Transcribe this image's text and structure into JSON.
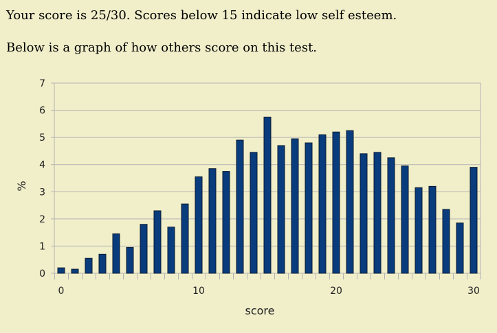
{
  "result": {
    "text": "Your score is 25/30. Scores below 15 indicate low self esteem."
  },
  "intro": {
    "text": "Below is a graph of how others score on this test."
  },
  "colors": {
    "background": "#f1efca",
    "bar_fill": "#083c7c",
    "bar_stroke": "#0a1830",
    "grid": "#b3b3b3"
  },
  "chart_data": {
    "type": "bar",
    "title": "",
    "xlabel": "score",
    "ylabel": "%",
    "xlim": [
      0,
      30
    ],
    "ylim": [
      0,
      7
    ],
    "grid": true,
    "x_ticks": [
      0,
      10,
      20,
      30
    ],
    "y_ticks": [
      0,
      1,
      2,
      3,
      4,
      5,
      6,
      7
    ],
    "x": [
      0,
      1,
      2,
      3,
      4,
      5,
      6,
      7,
      8,
      9,
      10,
      11,
      12,
      13,
      14,
      15,
      16,
      17,
      18,
      19,
      20,
      21,
      22,
      23,
      24,
      25,
      26,
      27,
      28,
      29,
      30
    ],
    "values": [
      0.2,
      0.15,
      0.55,
      0.7,
      1.45,
      0.95,
      1.8,
      2.3,
      1.7,
      2.55,
      3.55,
      3.85,
      3.75,
      4.9,
      4.45,
      5.75,
      4.7,
      4.95,
      4.8,
      5.1,
      5.2,
      5.25,
      4.4,
      4.45,
      4.25,
      3.95,
      3.15,
      3.2,
      2.35,
      1.85,
      3.9
    ]
  }
}
